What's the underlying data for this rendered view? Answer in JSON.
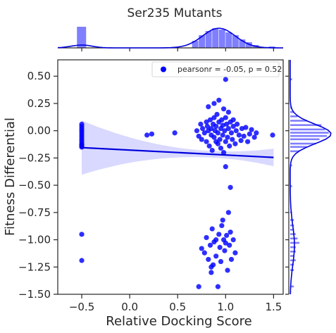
{
  "chart_data": {
    "type": "scatter",
    "title": "Ser235 Mutants",
    "xlabel": "Relative Docking Score",
    "ylabel": "Fitness Differential",
    "xlim": [
      -0.75,
      1.6
    ],
    "ylim": [
      -1.5,
      0.65
    ],
    "xticks": [
      -0.5,
      0.0,
      0.5,
      1.0,
      1.5
    ],
    "xtick_labels": [
      "−0.5",
      "0.0",
      "0.5",
      "1.0",
      "1.5"
    ],
    "yticks": [
      0.5,
      0.25,
      0.0,
      -0.25,
      -0.5,
      -0.75,
      -1.0,
      -1.25,
      -1.5
    ],
    "ytick_labels": [
      "0.50",
      "0.25",
      "0.00",
      "−0.25",
      "−0.50",
      "−0.75",
      "−1.00",
      "−1.25",
      "−1.50"
    ],
    "legend": {
      "label": "pearsonr = -0.05, p = 0.52",
      "position": "top-right"
    },
    "regression": {
      "x_range": [
        -0.5,
        1.5
      ],
      "y_start": -0.155,
      "y_end": -0.245
    },
    "marker_color": "#0000ff",
    "points": [
      [
        -0.5,
        0.06
      ],
      [
        -0.5,
        0.04
      ],
      [
        -0.5,
        0.02
      ],
      [
        -0.5,
        0.0
      ],
      [
        -0.5,
        -0.02
      ],
      [
        -0.5,
        -0.04
      ],
      [
        -0.5,
        -0.06
      ],
      [
        -0.5,
        -0.08
      ],
      [
        -0.5,
        -0.1
      ],
      [
        -0.5,
        -0.12
      ],
      [
        -0.5,
        -0.13
      ],
      [
        -0.5,
        -0.14
      ],
      [
        -0.5,
        -0.15
      ],
      [
        -0.5,
        -0.95
      ],
      [
        -0.5,
        -1.19
      ],
      [
        0.18,
        -0.04
      ],
      [
        0.23,
        -0.03
      ],
      [
        0.47,
        -0.02
      ],
      [
        0.7,
        0.0
      ],
      [
        0.72,
        -0.05
      ],
      [
        0.74,
        0.06
      ],
      [
        0.75,
        -0.08
      ],
      [
        0.76,
        0.02
      ],
      [
        0.78,
        -0.02
      ],
      [
        0.8,
        0.08
      ],
      [
        0.8,
        -0.1
      ],
      [
        0.81,
        0.04
      ],
      [
        0.82,
        0.0
      ],
      [
        0.83,
        -0.14
      ],
      [
        0.84,
        0.1
      ],
      [
        0.85,
        -0.04
      ],
      [
        0.85,
        0.02
      ],
      [
        0.86,
        -0.18
      ],
      [
        0.87,
        0.06
      ],
      [
        0.88,
        -0.06
      ],
      [
        0.88,
        0.12
      ],
      [
        0.89,
        0.0
      ],
      [
        0.9,
        -0.1
      ],
      [
        0.9,
        0.04
      ],
      [
        0.91,
        0.15
      ],
      [
        0.92,
        -0.02
      ],
      [
        0.92,
        -0.12
      ],
      [
        0.93,
        0.08
      ],
      [
        0.94,
        -0.08
      ],
      [
        0.95,
        0.02
      ],
      [
        0.95,
        -0.16
      ],
      [
        0.96,
        0.1
      ],
      [
        0.97,
        -0.04
      ],
      [
        0.97,
        0.05
      ],
      [
        0.98,
        -0.2
      ],
      [
        0.99,
        0.0
      ],
      [
        1.0,
        0.12
      ],
      [
        1.0,
        -0.1
      ],
      [
        1.01,
        0.06
      ],
      [
        1.02,
        -0.06
      ],
      [
        1.03,
        0.02
      ],
      [
        1.04,
        -0.14
      ],
      [
        1.05,
        0.08
      ],
      [
        1.06,
        -0.02
      ],
      [
        1.07,
        -0.08
      ],
      [
        1.08,
        0.04
      ],
      [
        1.1,
        -0.12
      ],
      [
        1.11,
        0.0
      ],
      [
        1.12,
        0.06
      ],
      [
        1.14,
        -0.04
      ],
      [
        1.16,
        -0.09
      ],
      [
        1.17,
        0.02
      ],
      [
        1.19,
        -0.05
      ],
      [
        1.21,
        0.03
      ],
      [
        1.23,
        -0.1
      ],
      [
        1.25,
        -0.03
      ],
      [
        1.27,
        0.01
      ],
      [
        1.3,
        -0.06
      ],
      [
        1.32,
        -0.02
      ],
      [
        1.49,
        -0.04
      ],
      [
        0.82,
        0.22
      ],
      [
        0.88,
        0.25
      ],
      [
        0.93,
        0.28
      ],
      [
        0.98,
        0.2
      ],
      [
        1.03,
        0.17
      ],
      [
        1.08,
        0.1
      ],
      [
        1.0,
        0.47
      ],
      [
        1.0,
        -0.33
      ],
      [
        1.05,
        -0.52
      ],
      [
        0.72,
        -1.43
      ],
      [
        0.75,
        -1.08
      ],
      [
        0.78,
        -1.12
      ],
      [
        0.8,
        -0.98
      ],
      [
        0.82,
        -1.18
      ],
      [
        0.84,
        -1.05
      ],
      [
        0.85,
        -1.3
      ],
      [
        0.86,
        -0.9
      ],
      [
        0.87,
        -1.23
      ],
      [
        0.88,
        -1.02
      ],
      [
        0.9,
        -1.15
      ],
      [
        0.9,
        -1.0
      ],
      [
        0.92,
        -1.43
      ],
      [
        0.93,
        -0.95
      ],
      [
        0.94,
        -1.07
      ],
      [
        0.95,
        -1.2
      ],
      [
        0.96,
        -0.87
      ],
      [
        0.97,
        -0.82
      ],
      [
        0.98,
        -1.0
      ],
      [
        0.99,
        -1.1
      ],
      [
        1.0,
        -1.03
      ],
      [
        1.01,
        -0.96
      ],
      [
        1.02,
        -1.28
      ],
      [
        1.03,
        -0.75
      ],
      [
        1.04,
        -1.05
      ],
      [
        1.05,
        -0.93
      ],
      [
        1.06,
        -1.18
      ],
      [
        1.08,
        -1.0
      ],
      [
        1.1,
        -1.12
      ],
      [
        0.85,
        -1.25
      ]
    ],
    "top_histogram": {
      "bins": [
        [
          -0.55,
          -0.45,
          15
        ],
        [
          0.65,
          0.72,
          5
        ],
        [
          0.72,
          0.79,
          9
        ],
        [
          0.79,
          0.86,
          12
        ],
        [
          0.86,
          0.93,
          14
        ],
        [
          0.93,
          1.0,
          13
        ],
        [
          1.0,
          1.07,
          11
        ],
        [
          1.07,
          1.14,
          9
        ],
        [
          1.14,
          1.21,
          6
        ],
        [
          1.21,
          1.28,
          4
        ],
        [
          1.28,
          1.35,
          2
        ],
        [
          1.45,
          1.52,
          1
        ]
      ]
    },
    "right_histogram": {
      "bins": [
        [
          0.46,
          0.48,
          1
        ],
        [
          0.2,
          0.22,
          1
        ],
        [
          0.16,
          0.18,
          2
        ],
        [
          0.12,
          0.14,
          4
        ],
        [
          0.08,
          0.1,
          9
        ],
        [
          0.04,
          0.06,
          17
        ],
        [
          0.0,
          0.02,
          19
        ],
        [
          -0.03,
          -0.01,
          21
        ],
        [
          -0.06,
          -0.04,
          20
        ],
        [
          -0.09,
          -0.07,
          16
        ],
        [
          -0.13,
          -0.11,
          14
        ],
        [
          -0.16,
          -0.14,
          9
        ],
        [
          -0.2,
          -0.18,
          5
        ],
        [
          -0.33,
          -0.31,
          1
        ],
        [
          -0.52,
          -0.5,
          1
        ],
        [
          -0.76,
          -0.74,
          1
        ],
        [
          -0.83,
          -0.81,
          2
        ],
        [
          -0.88,
          -0.86,
          2
        ],
        [
          -0.92,
          -0.9,
          2
        ],
        [
          -0.96,
          -0.94,
          3
        ],
        [
          -1.0,
          -0.98,
          4
        ],
        [
          -1.04,
          -1.02,
          5
        ],
        [
          -1.08,
          -1.06,
          3
        ],
        [
          -1.12,
          -1.1,
          3
        ],
        [
          -1.16,
          -1.14,
          2
        ],
        [
          -1.2,
          -1.18,
          3
        ],
        [
          -1.24,
          -1.22,
          2
        ],
        [
          -1.29,
          -1.27,
          2
        ],
        [
          -1.44,
          -1.42,
          2
        ]
      ]
    }
  }
}
